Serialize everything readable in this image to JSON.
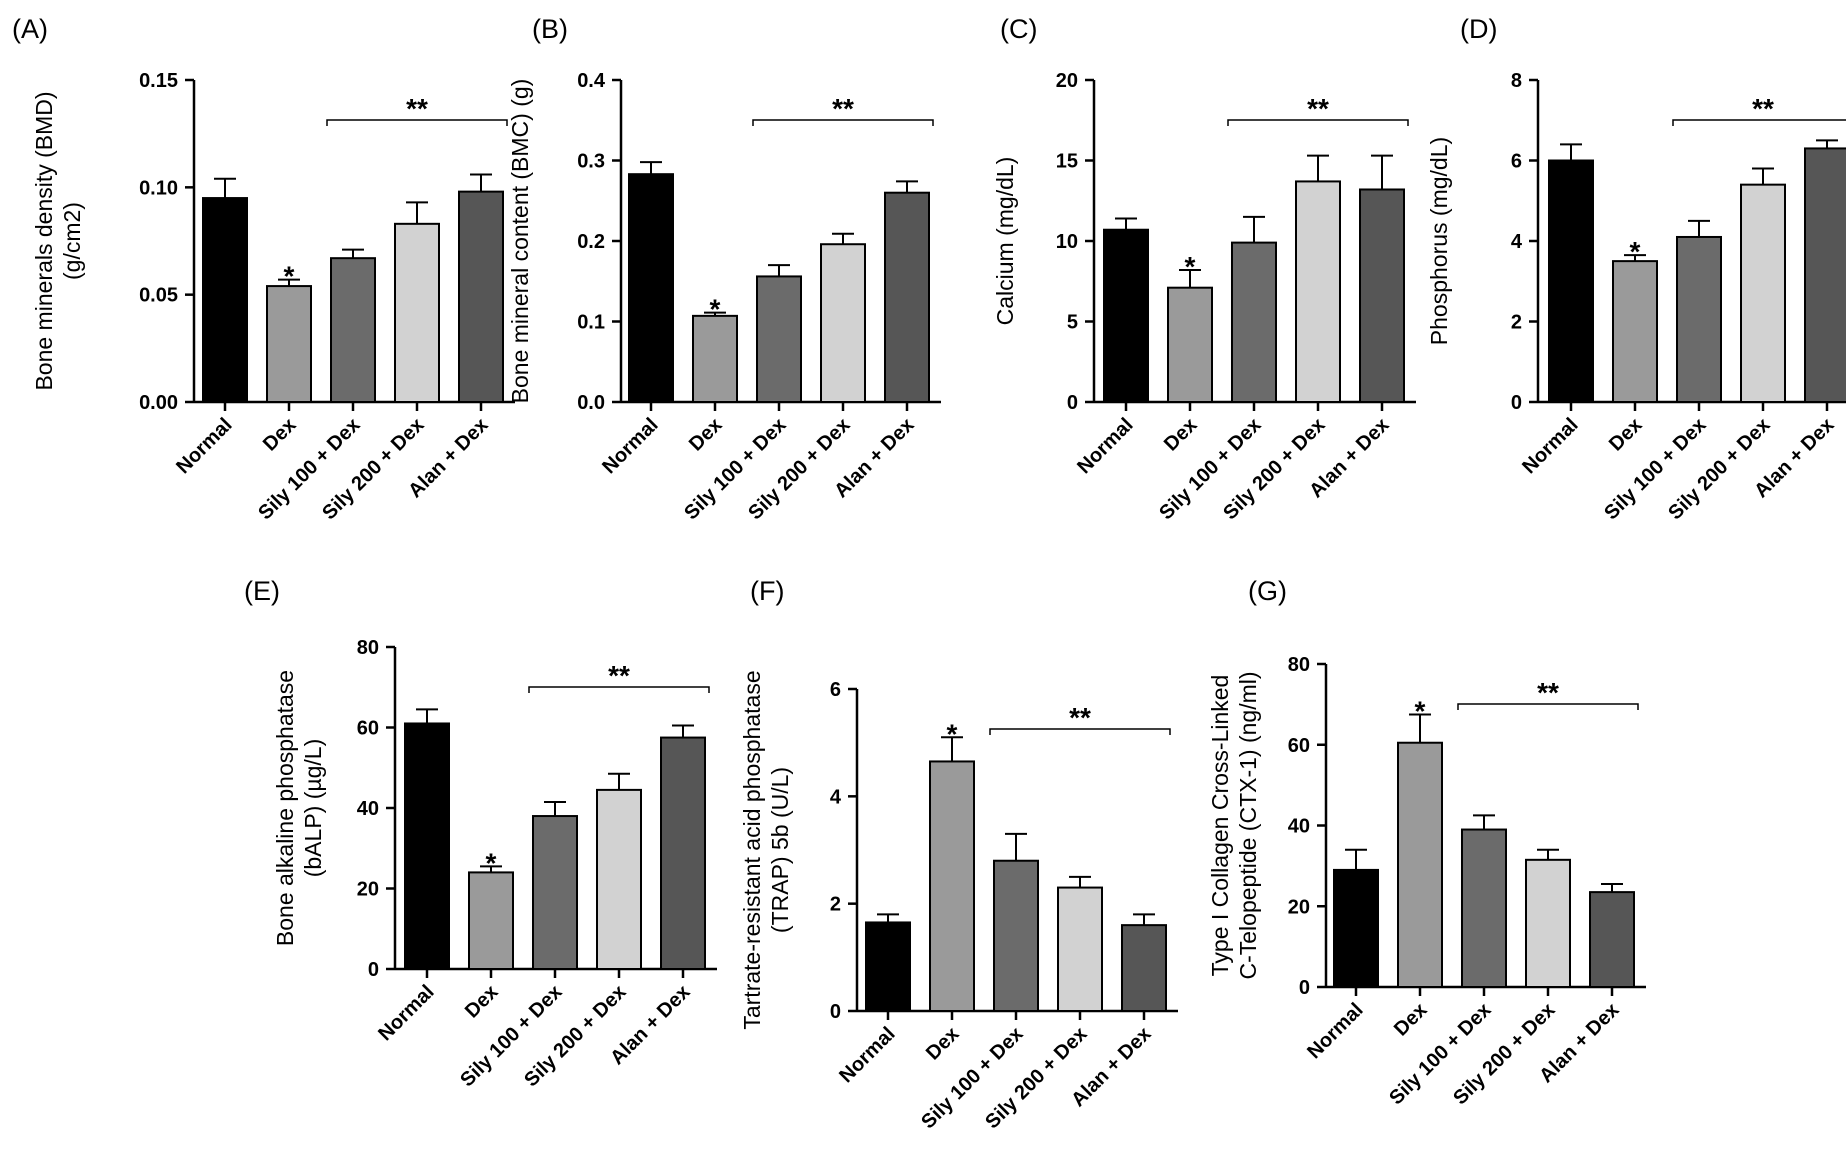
{
  "chart_data": [
    {
      "type": "bar",
      "panel": "(A)",
      "ylabel_lines": [
        "Bone minerals density (BMD)",
        "(g/cm2)"
      ],
      "categories": [
        "Normal",
        "Dex",
        "Sily 100 + Dex",
        "Sily 200 + Dex",
        "Alan + Dex"
      ],
      "values": [
        0.095,
        0.054,
        0.067,
        0.083,
        0.098
      ],
      "errors": [
        0.009,
        0.003,
        0.004,
        0.01,
        0.008
      ],
      "colors": [
        "#000000",
        "#9a9a9a",
        "#6b6b6b",
        "#d2d2d2",
        "#565656"
      ],
      "ylim": [
        0,
        0.15
      ],
      "yticks": [
        "0.00",
        "0.05",
        "0.10",
        "0.15"
      ],
      "yticks_val": [
        0,
        0.05,
        0.1,
        0.15
      ],
      "star": "*",
      "star_index": 1,
      "bracket_label": "**",
      "bracket_range": [
        2,
        4
      ]
    },
    {
      "type": "bar",
      "panel": "(B)",
      "ylabel_lines": [
        "Bone mineral content (BMC) (g)"
      ],
      "categories": [
        "Normal",
        "Dex",
        "Sily 100 + Dex",
        "Sily 200 + Dex",
        "Alan + Dex"
      ],
      "values": [
        0.283,
        0.107,
        0.156,
        0.196,
        0.26
      ],
      "errors": [
        0.015,
        0.004,
        0.014,
        0.013,
        0.014
      ],
      "colors": [
        "#000000",
        "#9a9a9a",
        "#6b6b6b",
        "#d2d2d2",
        "#565656"
      ],
      "ylim": [
        0,
        0.4
      ],
      "yticks": [
        "0.0",
        "0.1",
        "0.2",
        "0.3",
        "0.4"
      ],
      "yticks_val": [
        0,
        0.1,
        0.2,
        0.3,
        0.4
      ],
      "star": "*",
      "star_index": 1,
      "bracket_label": "**",
      "bracket_range": [
        2,
        4
      ]
    },
    {
      "type": "bar",
      "panel": "(C)",
      "ylabel_lines": [
        "Calcium (mg/dL)"
      ],
      "categories": [
        "Normal",
        "Dex",
        "Sily 100 + Dex",
        "Sily 200 + Dex",
        "Alan + Dex"
      ],
      "values": [
        10.7,
        7.1,
        9.9,
        13.7,
        13.2
      ],
      "errors": [
        0.7,
        1.1,
        1.6,
        1.6,
        2.1
      ],
      "colors": [
        "#000000",
        "#9a9a9a",
        "#6b6b6b",
        "#d2d2d2",
        "#565656"
      ],
      "ylim": [
        0,
        20
      ],
      "yticks": [
        "0",
        "5",
        "10",
        "15",
        "20"
      ],
      "yticks_val": [
        0,
        5,
        10,
        15,
        20
      ],
      "star": "*",
      "star_index": 1,
      "bracket_label": "**",
      "bracket_range": [
        2,
        4
      ]
    },
    {
      "type": "bar",
      "panel": "(D)",
      "ylabel_lines": [
        "Phosphorus (mg/dL)"
      ],
      "categories": [
        "Normal",
        "Dex",
        "Sily 100 + Dex",
        "Sily 200 + Dex",
        "Alan + Dex"
      ],
      "values": [
        6.0,
        3.5,
        4.1,
        5.4,
        6.3
      ],
      "errors": [
        0.4,
        0.15,
        0.4,
        0.4,
        0.2
      ],
      "colors": [
        "#000000",
        "#9a9a9a",
        "#6b6b6b",
        "#d2d2d2",
        "#565656"
      ],
      "ylim": [
        0,
        8
      ],
      "yticks": [
        "0",
        "2",
        "4",
        "6",
        "8"
      ],
      "yticks_val": [
        0,
        2,
        4,
        6,
        8
      ],
      "star": "*",
      "star_index": 1,
      "bracket_label": "**",
      "bracket_range": [
        2,
        4
      ]
    },
    {
      "type": "bar",
      "panel": "(E)",
      "ylabel_lines": [
        "Bone alkaline phosphatase",
        "(bALP) (µg/L)"
      ],
      "categories": [
        "Normal",
        "Dex",
        "Sily 100 + Dex",
        "Sily 200 + Dex",
        "Alan + Dex"
      ],
      "values": [
        61,
        24,
        38,
        44.5,
        57.5
      ],
      "errors": [
        3.5,
        1.5,
        3.5,
        4.0,
        3.0
      ],
      "colors": [
        "#000000",
        "#9a9a9a",
        "#6b6b6b",
        "#d2d2d2",
        "#565656"
      ],
      "ylim": [
        0,
        80
      ],
      "yticks": [
        "0",
        "20",
        "40",
        "60",
        "80"
      ],
      "yticks_val": [
        0,
        20,
        40,
        60,
        80
      ],
      "star": "*",
      "star_index": 1,
      "bracket_label": "**",
      "bracket_range": [
        2,
        4
      ]
    },
    {
      "type": "bar",
      "panel": "(F)",
      "ylabel_lines": [
        "Tartrate-resistant acid phosphatase",
        "(TRAP) 5b (U/L)"
      ],
      "categories": [
        "Normal",
        "Dex",
        "Sily 100 + Dex",
        "Sily 200 + Dex",
        "Alan + Dex"
      ],
      "values": [
        1.65,
        4.65,
        2.8,
        2.3,
        1.6
      ],
      "errors": [
        0.15,
        0.45,
        0.5,
        0.2,
        0.2
      ],
      "colors": [
        "#000000",
        "#9a9a9a",
        "#6b6b6b",
        "#d2d2d2",
        "#565656"
      ],
      "ylim": [
        0,
        6
      ],
      "yticks": [
        "0",
        "2",
        "4",
        "6"
      ],
      "yticks_val": [
        0,
        2,
        4,
        6
      ],
      "star": "*",
      "star_index": 1,
      "bracket_label": "**",
      "bracket_range": [
        2,
        4
      ]
    },
    {
      "type": "bar",
      "panel": "(G)",
      "ylabel_lines": [
        "Type I Collagen Cross-Linked",
        "C-Telopeptide (CTX-1) (ng/ml)"
      ],
      "categories": [
        "Normal",
        "Dex",
        "Sily 100 + Dex",
        "Sily 200 + Dex",
        "Alan + Dex"
      ],
      "values": [
        29,
        60.5,
        39,
        31.5,
        23.5
      ],
      "errors": [
        5,
        7,
        3.5,
        2.5,
        2
      ],
      "colors": [
        "#000000",
        "#9a9a9a",
        "#6b6b6b",
        "#d2d2d2",
        "#565656"
      ],
      "ylim": [
        0,
        80
      ],
      "yticks": [
        "0",
        "20",
        "40",
        "60",
        "80"
      ],
      "yticks_val": [
        0,
        20,
        40,
        60,
        80
      ],
      "star": "*",
      "star_index": 1,
      "bracket_label": "**",
      "bracket_range": [
        2,
        4
      ]
    }
  ]
}
